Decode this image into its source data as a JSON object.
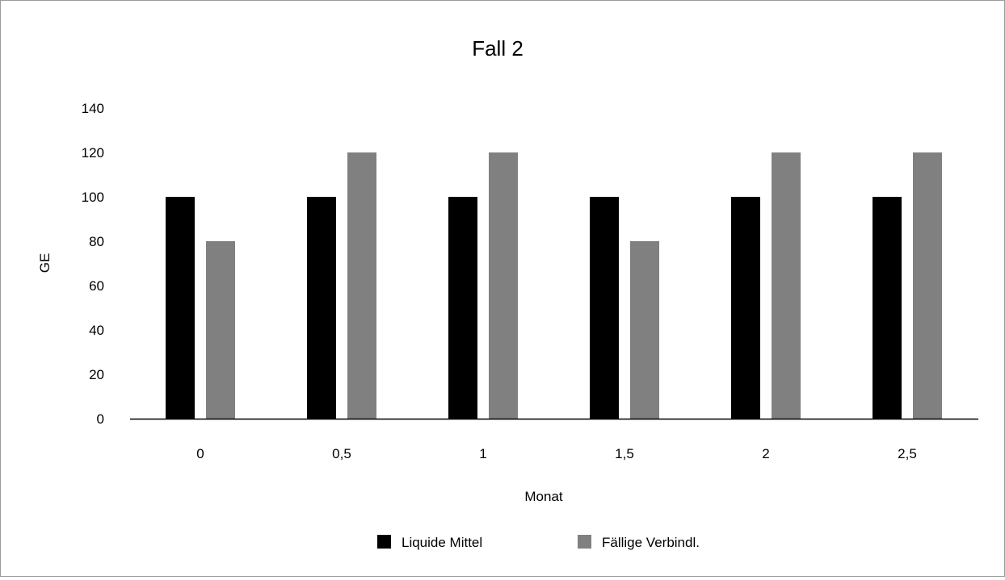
{
  "chart_data": {
    "type": "bar",
    "title": "Fall 2",
    "xlabel": "Monat",
    "ylabel": "GE",
    "categories": [
      "0",
      "0,5",
      "1",
      "1,5",
      "2",
      "2,5"
    ],
    "yticks": [
      "0",
      "20",
      "40",
      "60",
      "80",
      "100",
      "120",
      "140"
    ],
    "ylim": [
      0,
      140
    ],
    "grid": false,
    "legend_position": "bottom",
    "series": [
      {
        "name": "Liquide Mittel",
        "color": "#000000",
        "values": [
          100,
          100,
          100,
          100,
          100,
          100
        ]
      },
      {
        "name": "Fällige Verbindl.",
        "color": "#808080",
        "values": [
          80,
          120,
          120,
          80,
          120,
          120
        ]
      }
    ]
  }
}
